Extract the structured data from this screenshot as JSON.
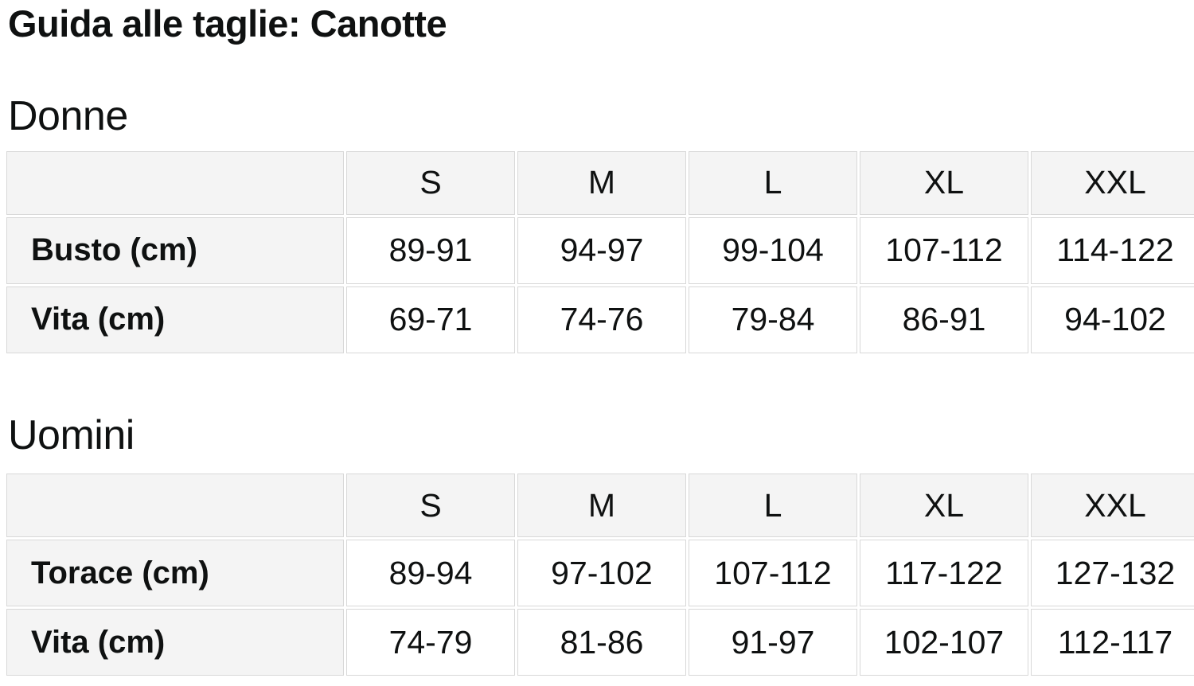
{
  "page": {
    "title": "Guida alle taglie: Canotte"
  },
  "colors": {
    "text": "#0f1111",
    "header_cell_bg": "#f4f4f4",
    "label_cell_bg": "#f4f4f4",
    "cell_border": "#d8d8d8",
    "page_bg": "#ffffff"
  },
  "sections": [
    {
      "heading": "Donne",
      "table": {
        "corner_label": "",
        "columns": [
          "S",
          "M",
          "L",
          "XL",
          "XXL"
        ],
        "rows": [
          {
            "label": "Busto (cm)",
            "values": [
              "89-91",
              "94-97",
              "99-104",
              "107-112",
              "114-122"
            ]
          },
          {
            "label": "Vita (cm)",
            "values": [
              "69-71",
              "74-76",
              "79-84",
              "86-91",
              "94-102"
            ]
          }
        ]
      }
    },
    {
      "heading": "Uomini",
      "table": {
        "corner_label": "",
        "columns": [
          "S",
          "M",
          "L",
          "XL",
          "XXL"
        ],
        "rows": [
          {
            "label": "Torace (cm)",
            "values": [
              "89-94",
              "97-102",
              "107-112",
              "117-122",
              "127-132"
            ]
          },
          {
            "label": "Vita (cm)",
            "values": [
              "74-79",
              "81-86",
              "91-97",
              "102-107",
              "112-117"
            ]
          }
        ]
      }
    }
  ]
}
